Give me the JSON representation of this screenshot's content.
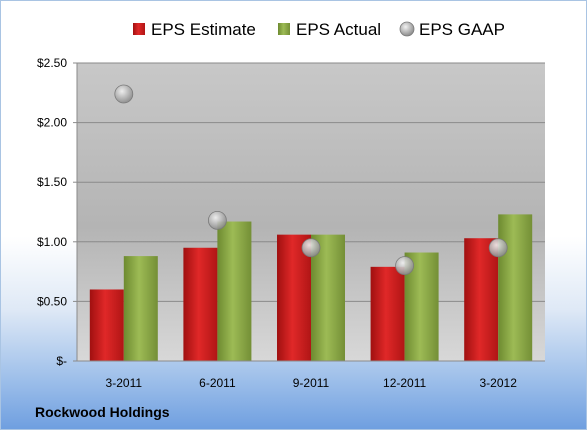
{
  "company_label": "Rockwood Holdings",
  "chart_data": {
    "type": "bar",
    "categories": [
      "3-2011",
      "6-2011",
      "9-2011",
      "12-2011",
      "3-2012"
    ],
    "series": [
      {
        "name": "EPS Estimate",
        "kind": "bar",
        "color": "#cc1f1f",
        "values": [
          0.6,
          0.95,
          1.06,
          0.79,
          1.03
        ]
      },
      {
        "name": "EPS Actual",
        "kind": "bar",
        "color": "#8aa845",
        "values": [
          0.88,
          1.17,
          1.06,
          0.91,
          1.23
        ]
      },
      {
        "name": "EPS GAAP",
        "kind": "marker",
        "color": "#a6a6a6",
        "values": [
          2.24,
          1.18,
          0.95,
          0.8,
          0.95
        ]
      }
    ],
    "y_ticks": [
      {
        "value": 0,
        "label": "$-"
      },
      {
        "value": 0.5,
        "label": "$0.50"
      },
      {
        "value": 1.0,
        "label": "$1.00"
      },
      {
        "value": 1.5,
        "label": "$1.50"
      },
      {
        "value": 2.0,
        "label": "$2.00"
      },
      {
        "value": 2.5,
        "label": "$2.50"
      }
    ],
    "ylim": [
      0,
      2.5
    ],
    "grid": true,
    "legend_position": "top"
  }
}
